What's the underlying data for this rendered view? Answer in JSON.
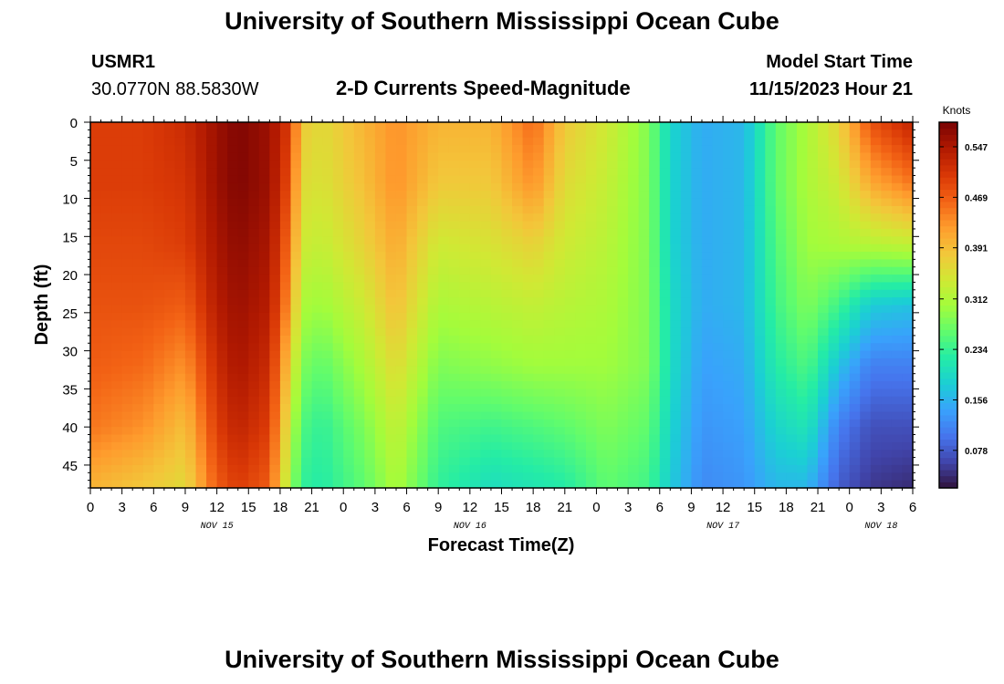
{
  "header": {
    "title": "University of Southern Mississippi Ocean Cube",
    "station_id": "USMR1",
    "location": "30.0770N  88.5830W",
    "subtitle": "2-D Currents Speed-Magnitude",
    "model_label": "Model Start Time",
    "model_time": "11/15/2023 Hour 21",
    "footer_title": "University of Southern Mississippi Ocean Cube"
  },
  "chart_data": {
    "type": "heatmap",
    "title": "2-D Currents Speed-Magnitude",
    "xlabel": "Forecast Time(Z)",
    "ylabel": "Depth (ft)",
    "colorbar_label": "Knots",
    "colorbar_ticks": [
      0.078,
      0.156,
      0.234,
      0.312,
      0.391,
      0.469,
      0.547
    ],
    "color_range": [
      0.02,
      0.585
    ],
    "colormap": [
      "#30123b",
      "#4145ab",
      "#4675ed",
      "#39a2fc",
      "#1bcfd4",
      "#24eca6",
      "#61fc6c",
      "#a4fc3b",
      "#d1e834",
      "#f3c63a",
      "#fe9b2d",
      "#f36315",
      "#d93806",
      "#b11901",
      "#7a0403"
    ],
    "x_unit": "hours since 11/15/2023 00Z",
    "x_ticks": [
      {
        "x": 0,
        "label": "0"
      },
      {
        "x": 3,
        "label": "3"
      },
      {
        "x": 6,
        "label": "6"
      },
      {
        "x": 9,
        "label": "9"
      },
      {
        "x": 12,
        "label": "12"
      },
      {
        "x": 15,
        "label": "15"
      },
      {
        "x": 18,
        "label": "18"
      },
      {
        "x": 21,
        "label": "21"
      },
      {
        "x": 24,
        "label": "0"
      },
      {
        "x": 27,
        "label": "3"
      },
      {
        "x": 30,
        "label": "6"
      },
      {
        "x": 33,
        "label": "9"
      },
      {
        "x": 36,
        "label": "12"
      },
      {
        "x": 39,
        "label": "15"
      },
      {
        "x": 42,
        "label": "18"
      },
      {
        "x": 45,
        "label": "21"
      },
      {
        "x": 48,
        "label": "0"
      },
      {
        "x": 51,
        "label": "3"
      },
      {
        "x": 54,
        "label": "6"
      },
      {
        "x": 57,
        "label": "9"
      },
      {
        "x": 60,
        "label": "12"
      },
      {
        "x": 63,
        "label": "15"
      },
      {
        "x": 66,
        "label": "18"
      },
      {
        "x": 69,
        "label": "21"
      },
      {
        "x": 72,
        "label": "0"
      },
      {
        "x": 75,
        "label": "3"
      },
      {
        "x": 78,
        "label": "6"
      }
    ],
    "date_labels": [
      {
        "x": 12,
        "label": "NOV 15"
      },
      {
        "x": 36,
        "label": "NOV 16"
      },
      {
        "x": 60,
        "label": "NOV 17"
      },
      {
        "x": 75,
        "label": "NOV 18"
      }
    ],
    "xlim": [
      0,
      78
    ],
    "y_ticks": [
      0,
      5,
      10,
      15,
      20,
      25,
      30,
      35,
      40,
      45
    ],
    "ylim": [
      0,
      48
    ],
    "y_inverted": true,
    "depths": [
      0,
      8,
      16,
      24,
      32,
      40,
      48
    ],
    "time_columns": [
      {
        "x": 0,
        "speeds": [
          0.5,
          0.5,
          0.49,
          0.48,
          0.47,
          0.45,
          0.4
        ]
      },
      {
        "x": 5,
        "speeds": [
          0.5,
          0.5,
          0.49,
          0.48,
          0.46,
          0.43,
          0.38
        ]
      },
      {
        "x": 9,
        "speeds": [
          0.52,
          0.51,
          0.5,
          0.47,
          0.43,
          0.39,
          0.36
        ]
      },
      {
        "x": 12,
        "speeds": [
          0.56,
          0.56,
          0.55,
          0.54,
          0.52,
          0.5,
          0.47
        ]
      },
      {
        "x": 14,
        "speeds": [
          0.58,
          0.58,
          0.57,
          0.56,
          0.55,
          0.53,
          0.5
        ]
      },
      {
        "x": 17,
        "speeds": [
          0.56,
          0.56,
          0.55,
          0.54,
          0.52,
          0.5,
          0.47
        ]
      },
      {
        "x": 19,
        "speeds": [
          0.5,
          0.48,
          0.45,
          0.42,
          0.37,
          0.33,
          0.3
        ]
      },
      {
        "x": 20,
        "speeds": [
          0.38,
          0.36,
          0.34,
          0.31,
          0.28,
          0.25,
          0.23
        ]
      },
      {
        "x": 22,
        "speeds": [
          0.36,
          0.35,
          0.33,
          0.3,
          0.26,
          0.23,
          0.22
        ]
      },
      {
        "x": 26,
        "speeds": [
          0.4,
          0.39,
          0.37,
          0.34,
          0.31,
          0.28,
          0.26
        ]
      },
      {
        "x": 29,
        "speeds": [
          0.43,
          0.43,
          0.41,
          0.39,
          0.36,
          0.33,
          0.31
        ]
      },
      {
        "x": 33,
        "speeds": [
          0.4,
          0.38,
          0.34,
          0.31,
          0.28,
          0.25,
          0.23
        ]
      },
      {
        "x": 38,
        "speeds": [
          0.4,
          0.38,
          0.35,
          0.32,
          0.29,
          0.24,
          0.2
        ]
      },
      {
        "x": 42,
        "speeds": [
          0.46,
          0.43,
          0.37,
          0.33,
          0.3,
          0.25,
          0.21
        ]
      },
      {
        "x": 45,
        "speeds": [
          0.38,
          0.36,
          0.34,
          0.32,
          0.3,
          0.26,
          0.22
        ]
      },
      {
        "x": 49,
        "speeds": [
          0.34,
          0.33,
          0.32,
          0.31,
          0.3,
          0.28,
          0.26
        ]
      },
      {
        "x": 53,
        "speeds": [
          0.28,
          0.28,
          0.28,
          0.28,
          0.28,
          0.26,
          0.24
        ]
      },
      {
        "x": 55,
        "speeds": [
          0.19,
          0.19,
          0.19,
          0.2,
          0.2,
          0.19,
          0.18
        ]
      },
      {
        "x": 58,
        "speeds": [
          0.15,
          0.15,
          0.15,
          0.15,
          0.14,
          0.13,
          0.12
        ]
      },
      {
        "x": 62,
        "speeds": [
          0.16,
          0.16,
          0.16,
          0.16,
          0.15,
          0.14,
          0.13
        ]
      },
      {
        "x": 65,
        "speeds": [
          0.26,
          0.26,
          0.25,
          0.24,
          0.22,
          0.19,
          0.16
        ]
      },
      {
        "x": 68,
        "speeds": [
          0.31,
          0.31,
          0.3,
          0.28,
          0.25,
          0.21,
          0.16
        ]
      },
      {
        "x": 71,
        "speeds": [
          0.37,
          0.34,
          0.31,
          0.24,
          0.17,
          0.11,
          0.08
        ]
      },
      {
        "x": 74,
        "speeds": [
          0.48,
          0.41,
          0.32,
          0.18,
          0.11,
          0.07,
          0.05
        ]
      },
      {
        "x": 78,
        "speeds": [
          0.53,
          0.45,
          0.33,
          0.17,
          0.11,
          0.07,
          0.04
        ]
      }
    ]
  }
}
